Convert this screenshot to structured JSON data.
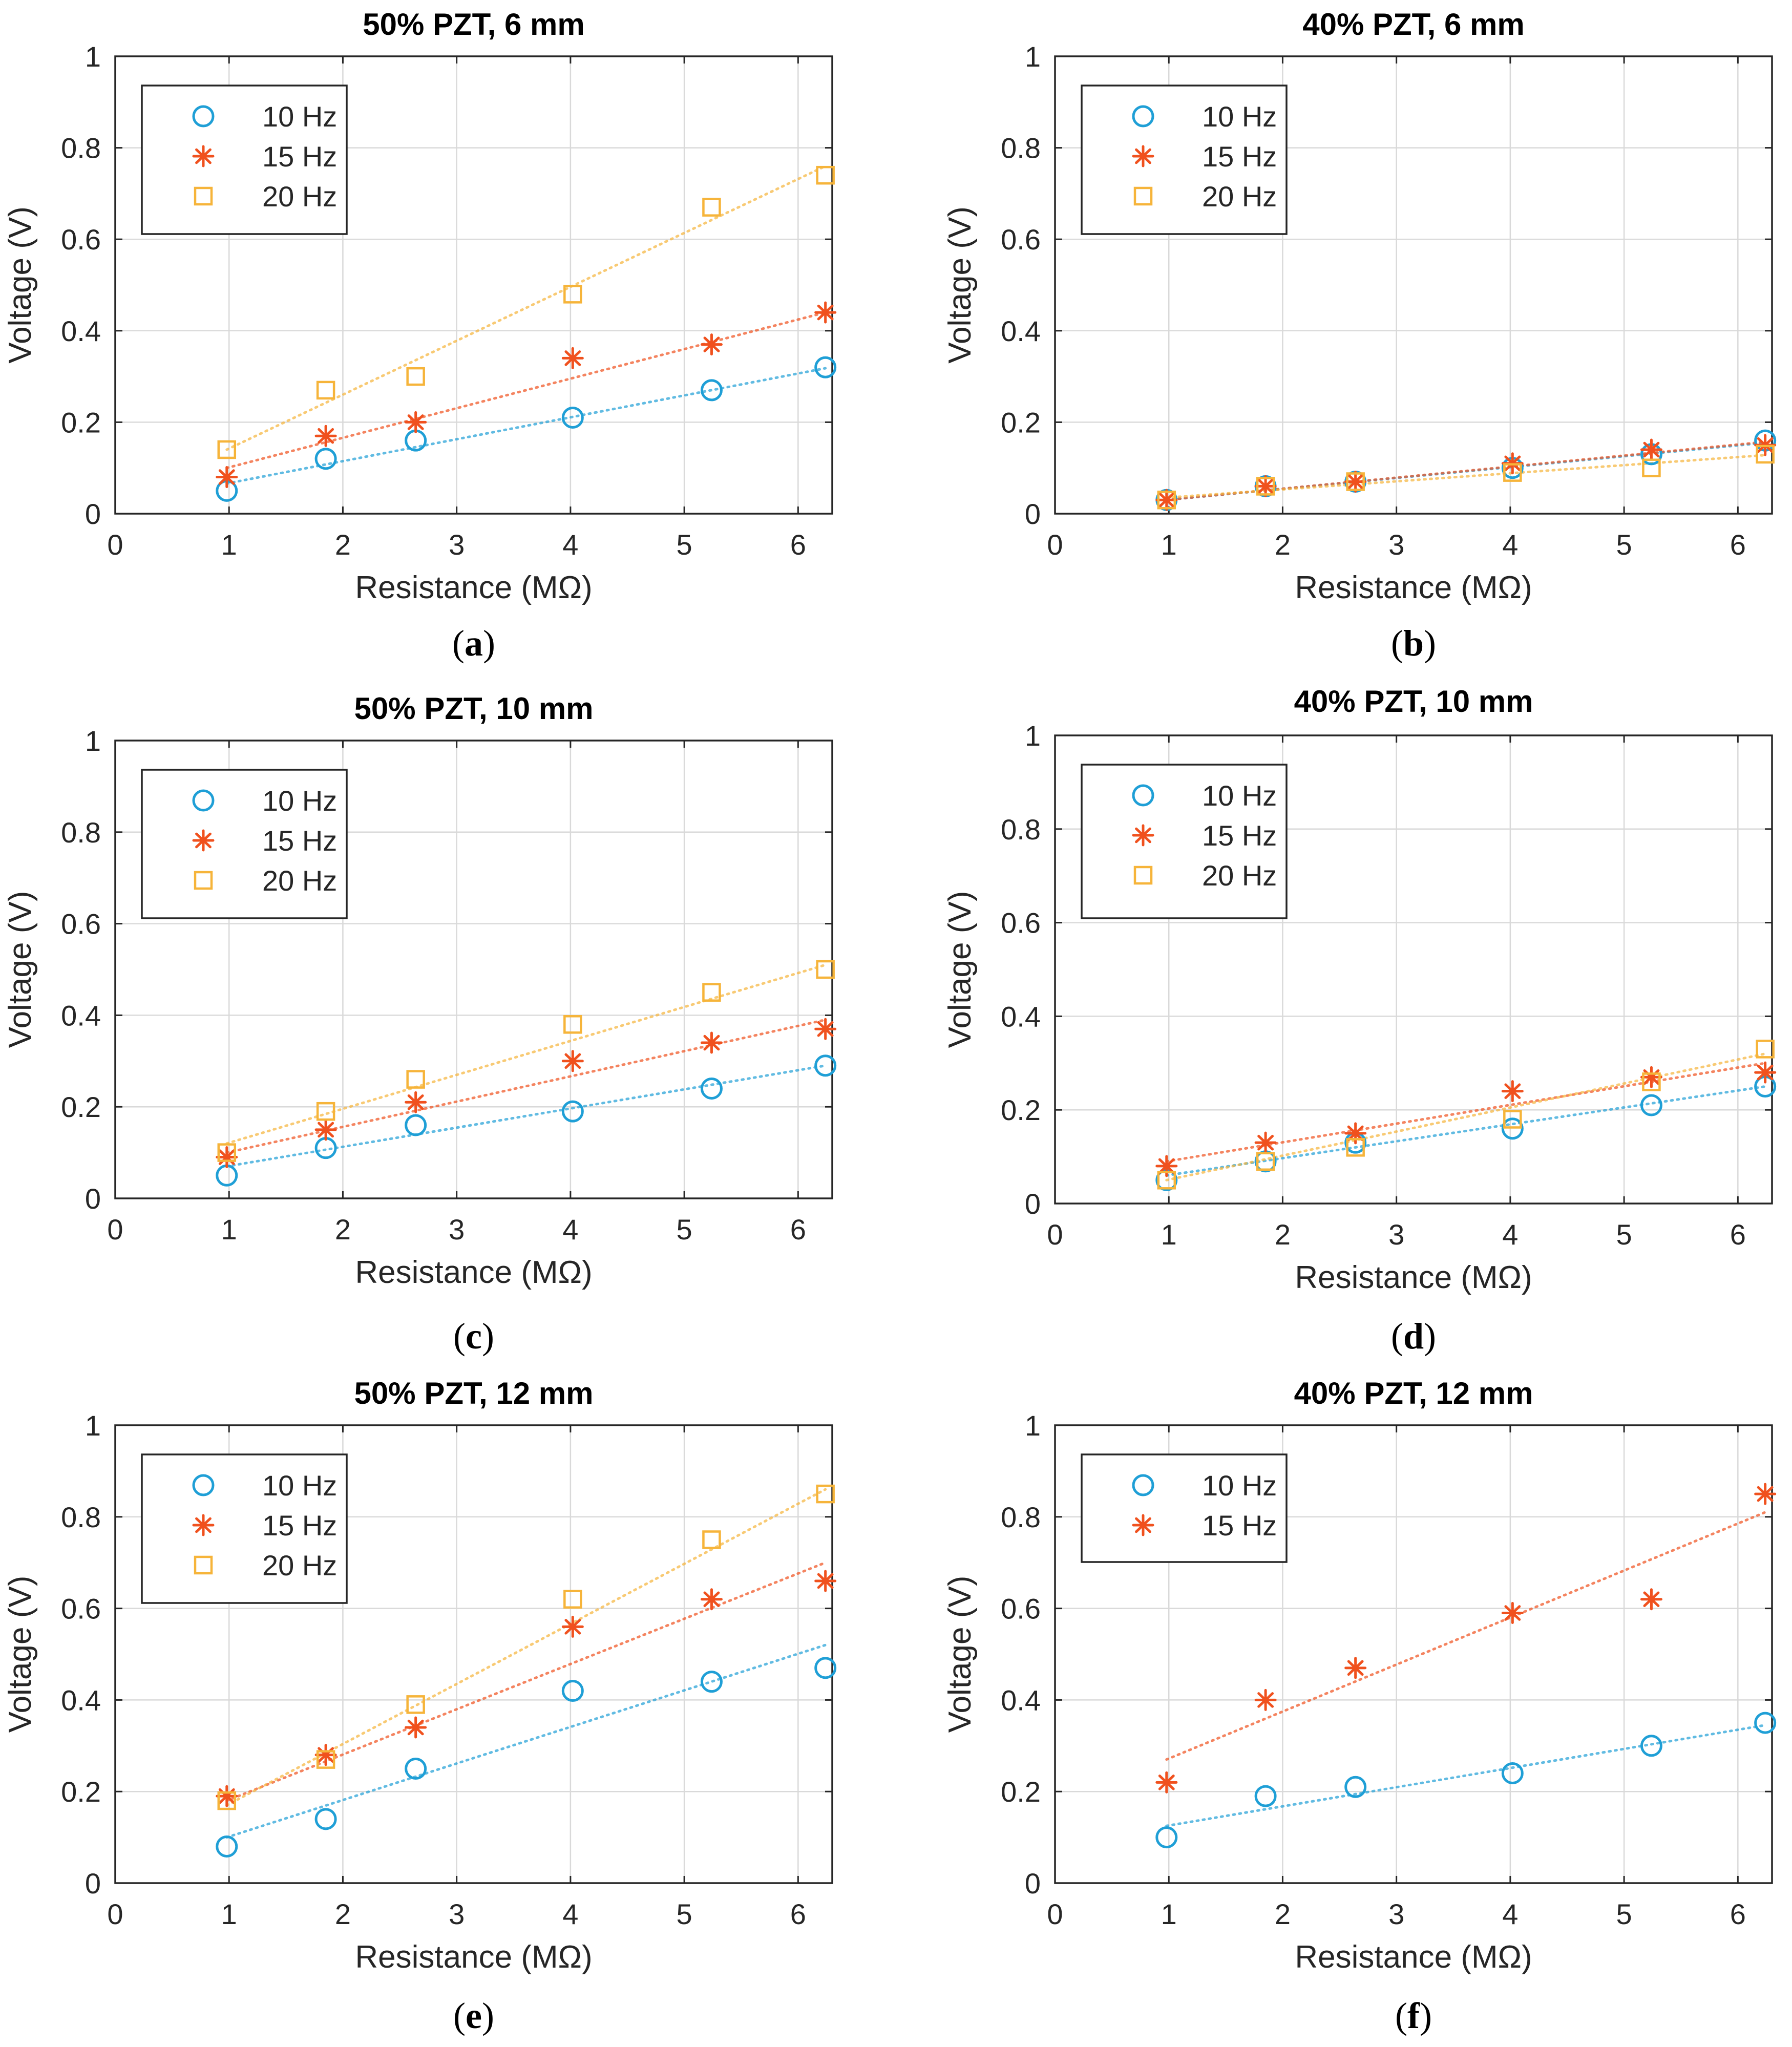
{
  "figure": {
    "x_ticks": [
      "0",
      "1",
      "2",
      "3",
      "4",
      "5",
      "6"
    ],
    "y_ticks": [
      "0",
      "0.2",
      "0.4",
      "0.6",
      "0.8",
      "1"
    ],
    "colors": {
      "10 Hz": "#1f9fd6",
      "15 Hz": "#f0511e",
      "20 Hz": "#f6b43a",
      "grid": "#d9d9d9",
      "axis": "#262626"
    }
  },
  "chart_data": [
    {
      "id": "a",
      "type": "scatter",
      "title": "50% PZT, 6 mm",
      "caption": "(a)",
      "caption_letter": "a",
      "xlabel": "Resistance (MΩ)",
      "ylabel": "Voltage (V)",
      "xlim": [
        0,
        6.3
      ],
      "ylim": [
        0,
        1
      ],
      "grid": true,
      "legend": "top-left",
      "x": [
        0.98,
        1.85,
        2.64,
        4.02,
        5.24,
        6.24
      ],
      "series": [
        {
          "name": "10 Hz",
          "marker": "circle",
          "values": [
            0.05,
            0.12,
            0.16,
            0.21,
            0.27,
            0.32
          ],
          "fit": [
            0.066,
            0.318
          ]
        },
        {
          "name": "15 Hz",
          "marker": "asterisk",
          "values": [
            0.08,
            0.17,
            0.2,
            0.34,
            0.37,
            0.44
          ],
          "fit": [
            0.1,
            0.44
          ]
        },
        {
          "name": "20 Hz",
          "marker": "square",
          "values": [
            0.14,
            0.27,
            0.3,
            0.48,
            0.67,
            0.74
          ],
          "fit": [
            0.14,
            0.76
          ]
        }
      ]
    },
    {
      "id": "b",
      "type": "scatter",
      "title": "40% PZT, 6 mm",
      "caption": "(b)",
      "caption_letter": "b",
      "xlabel": "Resistance (MΩ)",
      "ylabel": "Voltage (V)",
      "xlim": [
        0,
        6.3
      ],
      "ylim": [
        0,
        1
      ],
      "grid": true,
      "legend": "top-left",
      "x": [
        0.98,
        1.85,
        2.64,
        4.02,
        5.24,
        6.24
      ],
      "series": [
        {
          "name": "10 Hz",
          "marker": "circle",
          "values": [
            0.03,
            0.06,
            0.07,
            0.1,
            0.13,
            0.16
          ],
          "fit": [
            0.03,
            0.155
          ]
        },
        {
          "name": "15 Hz",
          "marker": "asterisk",
          "values": [
            0.03,
            0.06,
            0.07,
            0.11,
            0.14,
            0.15
          ],
          "fit": [
            0.03,
            0.157
          ]
        },
        {
          "name": "20 Hz",
          "marker": "square",
          "values": [
            0.03,
            0.06,
            0.07,
            0.09,
            0.1,
            0.13
          ],
          "fit": [
            0.035,
            0.128
          ]
        }
      ]
    },
    {
      "id": "c",
      "type": "scatter",
      "title": "50% PZT, 10 mm",
      "caption": "(c)",
      "caption_letter": "c",
      "xlabel": "Resistance (MΩ)",
      "ylabel": "Voltage (V)",
      "xlim": [
        0,
        6.3
      ],
      "ylim": [
        0,
        1
      ],
      "grid": true,
      "legend": "top-left",
      "x": [
        0.98,
        1.85,
        2.64,
        4.02,
        5.24,
        6.24
      ],
      "series": [
        {
          "name": "10 Hz",
          "marker": "circle",
          "values": [
            0.05,
            0.11,
            0.16,
            0.19,
            0.24,
            0.29
          ],
          "fit": [
            0.07,
            0.29
          ]
        },
        {
          "name": "15 Hz",
          "marker": "asterisk",
          "values": [
            0.09,
            0.15,
            0.21,
            0.3,
            0.34,
            0.37
          ],
          "fit": [
            0.1,
            0.39
          ]
        },
        {
          "name": "20 Hz",
          "marker": "square",
          "values": [
            0.1,
            0.19,
            0.26,
            0.38,
            0.45,
            0.5
          ],
          "fit": [
            0.12,
            0.51
          ]
        }
      ]
    },
    {
      "id": "d",
      "type": "scatter",
      "title": "40% PZT, 10 mm",
      "caption": "(d)",
      "caption_letter": "d",
      "xlabel": "Resistance (MΩ)",
      "ylabel": "Voltage (V)",
      "xlim": [
        0,
        6.3
      ],
      "ylim": [
        0,
        1
      ],
      "grid": true,
      "legend": "top-left",
      "x": [
        0.98,
        1.85,
        2.64,
        4.02,
        5.24,
        6.24
      ],
      "series": [
        {
          "name": "10 Hz",
          "marker": "circle",
          "values": [
            0.05,
            0.09,
            0.13,
            0.16,
            0.21,
            0.25
          ],
          "fit": [
            0.06,
            0.25
          ]
        },
        {
          "name": "15 Hz",
          "marker": "asterisk",
          "values": [
            0.08,
            0.13,
            0.15,
            0.24,
            0.27,
            0.28
          ],
          "fit": [
            0.09,
            0.3
          ]
        },
        {
          "name": "20 Hz",
          "marker": "square",
          "values": [
            0.05,
            0.09,
            0.12,
            0.18,
            0.26,
            0.33
          ],
          "fit": [
            0.05,
            0.32
          ]
        }
      ]
    },
    {
      "id": "e",
      "type": "scatter",
      "title": "50% PZT, 12 mm",
      "caption": "(e)",
      "caption_letter": "e",
      "xlabel": "Resistance (MΩ)",
      "ylabel": "Voltage (V)",
      "xlim": [
        0,
        6.3
      ],
      "ylim": [
        0,
        1
      ],
      "grid": true,
      "legend": "top-left",
      "x": [
        0.98,
        1.85,
        2.64,
        4.02,
        5.24,
        6.24
      ],
      "series": [
        {
          "name": "10 Hz",
          "marker": "circle",
          "values": [
            0.08,
            0.14,
            0.25,
            0.42,
            0.44,
            0.47
          ],
          "fit": [
            0.1,
            0.52
          ]
        },
        {
          "name": "15 Hz",
          "marker": "asterisk",
          "values": [
            0.19,
            0.28,
            0.34,
            0.56,
            0.62,
            0.66
          ],
          "fit": [
            0.18,
            0.7
          ]
        },
        {
          "name": "20 Hz",
          "marker": "square",
          "values": [
            0.18,
            0.27,
            0.39,
            0.62,
            0.75,
            0.85
          ],
          "fit": [
            0.17,
            0.86
          ]
        }
      ]
    },
    {
      "id": "f",
      "type": "scatter",
      "title": "40% PZT, 12 mm",
      "caption": "(f)",
      "caption_letter": "f",
      "xlabel": "Resistance (MΩ)",
      "ylabel": "Voltage (V)",
      "xlim": [
        0,
        6.3
      ],
      "ylim": [
        0,
        1
      ],
      "grid": true,
      "legend": "top-left",
      "x": [
        0.98,
        1.85,
        2.64,
        4.02,
        5.24,
        6.24
      ],
      "series": [
        {
          "name": "10 Hz",
          "marker": "circle",
          "values": [
            0.1,
            0.19,
            0.21,
            0.24,
            0.3,
            0.35
          ],
          "fit": [
            0.125,
            0.345
          ]
        },
        {
          "name": "15 Hz",
          "marker": "asterisk",
          "values": [
            0.22,
            0.4,
            0.47,
            0.59,
            0.62,
            0.85
          ],
          "fit": [
            0.27,
            0.81
          ]
        }
      ]
    }
  ]
}
